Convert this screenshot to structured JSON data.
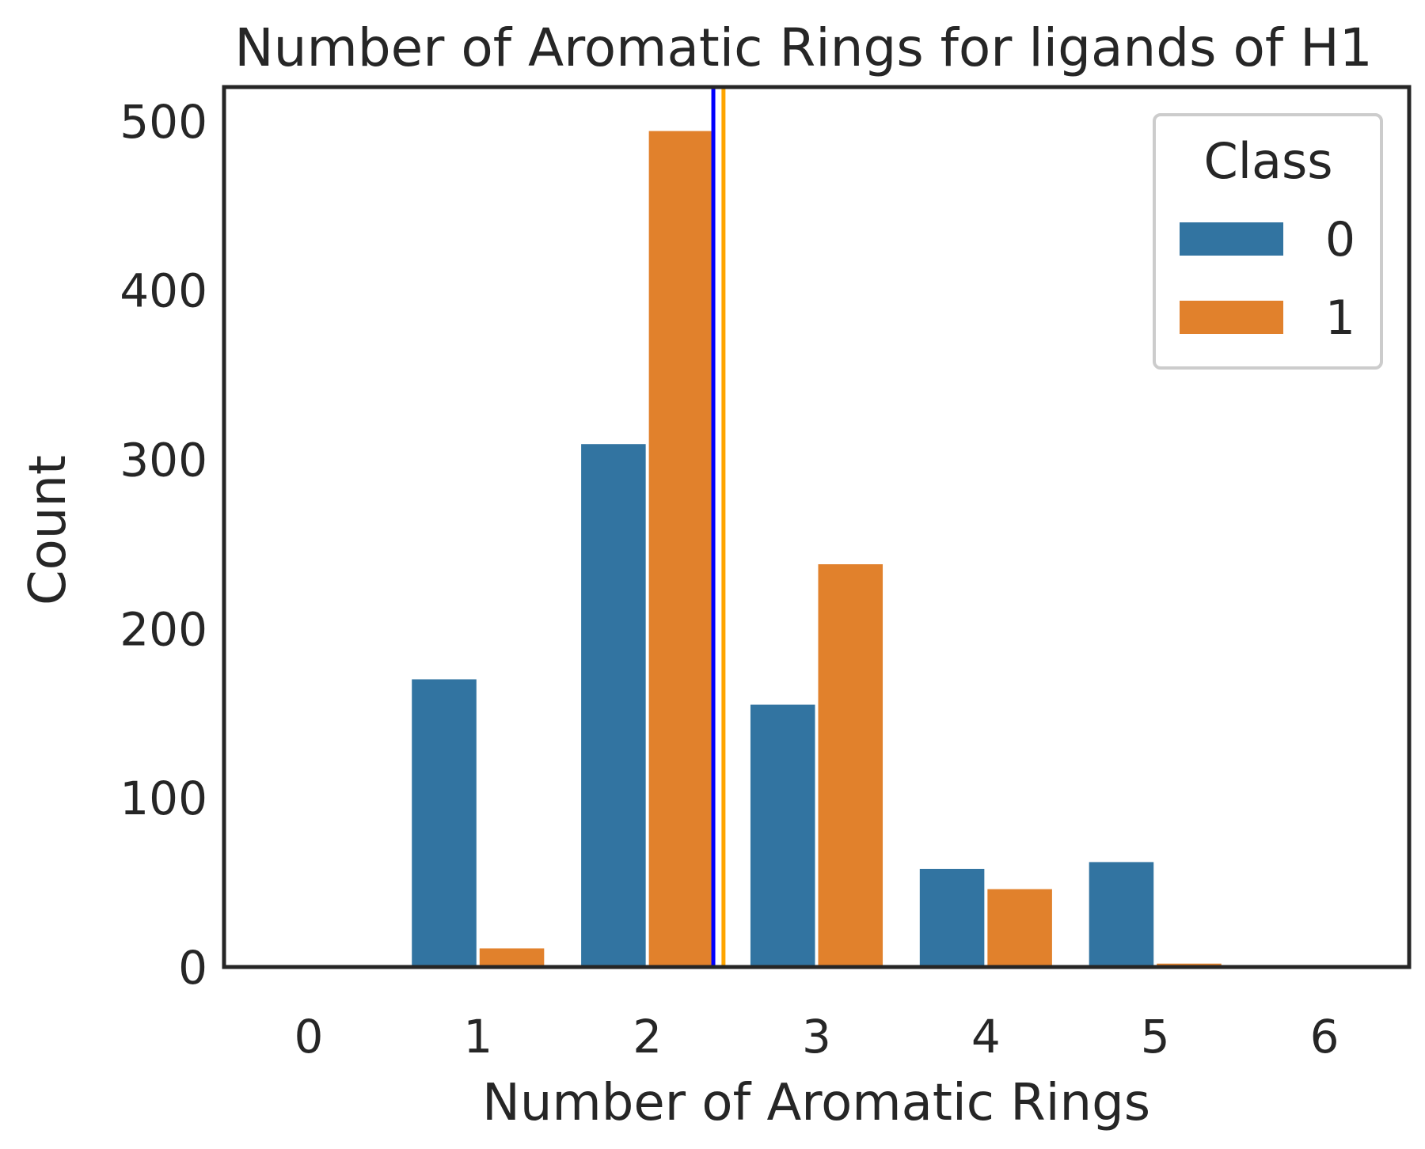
{
  "chart_data": {
    "type": "bar",
    "title": "Number of Aromatic Rings for ligands of H1",
    "xlabel": "Number of Aromatic Rings",
    "ylabel": "Count",
    "categories": [
      "0",
      "1",
      "2",
      "3",
      "4",
      "5",
      "6"
    ],
    "ylim": [
      0,
      520
    ],
    "yticks": [
      0,
      100,
      200,
      300,
      400,
      500
    ],
    "grid": false,
    "legend": {
      "title": "Class",
      "position": "top-right"
    },
    "series": [
      {
        "name": "0",
        "color": "#3274a1",
        "values": [
          0,
          170,
          309,
          155,
          58,
          62,
          0
        ]
      },
      {
        "name": "1",
        "color": "#e1812c",
        "values": [
          0,
          11,
          494,
          238,
          46,
          2,
          0
        ]
      }
    ],
    "reference_lines": [
      {
        "x": 2.39,
        "color": "#0000ff"
      },
      {
        "x": 2.45,
        "color": "#ffa500"
      }
    ]
  }
}
